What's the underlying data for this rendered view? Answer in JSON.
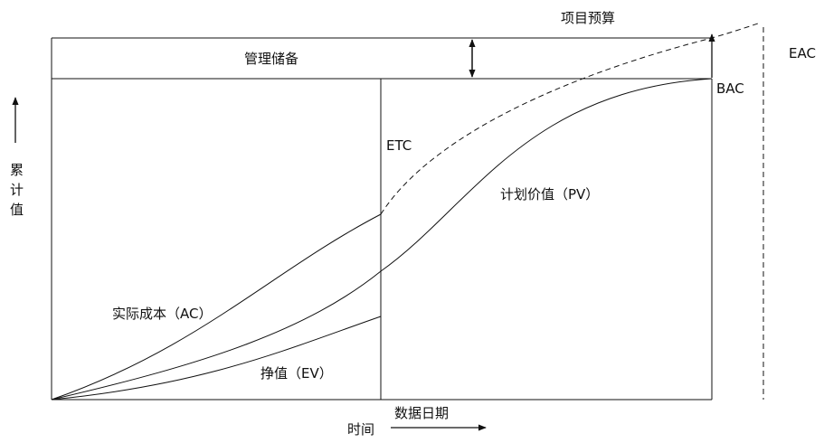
{
  "labels": {
    "project_budget": "项目预算",
    "management_reserve": "管理储备",
    "eac": "EAC",
    "bac": "BAC",
    "etc": "ETC",
    "pv": "计划价值（PV）",
    "ac": "实际成本（AC）",
    "ev": "挣值（EV）",
    "data_date": "数据日期",
    "time_axis": "时间",
    "y_axis": [
      "累",
      "计",
      "值"
    ]
  },
  "colors": {
    "line": "#111111",
    "background": "#ffffff"
  }
}
